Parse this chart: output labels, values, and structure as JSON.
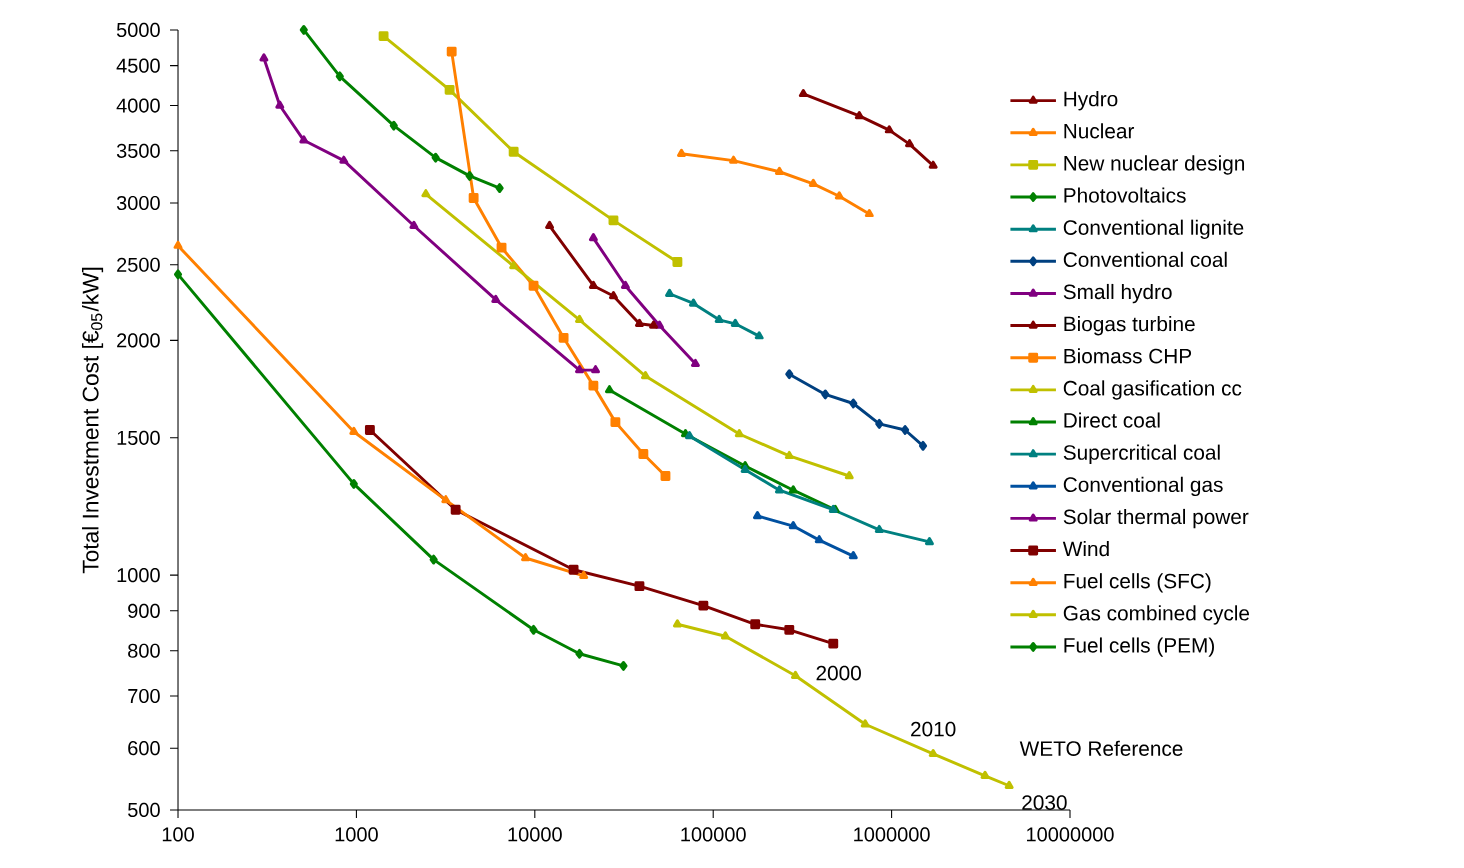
{
  "chart_data": {
    "type": "line",
    "ylabel": "Total Investment Cost [€$_{05}$/kW]",
    "log": "xy",
    "grid": false,
    "legend": "right",
    "line_style": "solid",
    "xlim": [
      100,
      10000000
    ],
    "xticks": [
      100,
      1000,
      10000,
      100000,
      1000000,
      10000000
    ],
    "ylim": [
      500,
      5000
    ],
    "yticks": [
      500,
      600,
      700,
      800,
      900,
      1000,
      1500,
      2000,
      2500,
      3000,
      3500,
      4000,
      4500,
      5000
    ],
    "series": [
      {
        "name": "Hydro",
        "color": "#800000",
        "marker": "triangle",
        "x": [
          320000,
          659000,
          970000,
          1260000,
          1710000
        ],
        "values": [
          4140,
          3880,
          3720,
          3570,
          3350
        ]
      },
      {
        "name": "Nuclear",
        "color": "#ff8000",
        "marker": "triangle",
        "x": [
          66400,
          130000,
          235000,
          364000,
          509000,
          750000
        ],
        "values": [
          3470,
          3400,
          3290,
          3175,
          3060,
          2905
        ]
      },
      {
        "name": "New nuclear design",
        "color": "#c0c000",
        "marker": "square",
        "x": [
          1420,
          3330,
          7610,
          27600,
          63000
        ],
        "values": [
          4910,
          4190,
          3490,
          2850,
          2520
        ]
      },
      {
        "name": "Photovoltaics",
        "color": "#008000",
        "marker": "diamond",
        "x": [
          507,
          807,
          1620,
          2780,
          4310,
          6350
        ],
        "values": [
          5000,
          4360,
          3770,
          3430,
          3250,
          3135
        ]
      },
      {
        "name": "Conventional lignite",
        "color": "#008080",
        "marker": "triangle",
        "x": [
          56900,
          77500,
          108000,
          133000,
          181000
        ],
        "values": [
          2295,
          2230,
          2125,
          2100,
          2025
        ]
      },
      {
        "name": "Conventional coal",
        "color": "#004080",
        "marker": "diamond",
        "x": [
          267000,
          425000,
          610000,
          853000,
          1190000,
          1500000
        ],
        "values": [
          1810,
          1705,
          1660,
          1563,
          1535,
          1465
        ]
      },
      {
        "name": "Small hydro",
        "color": "#800080",
        "marker": "triangle",
        "x": [
          21300,
          32200,
          50000,
          79500
        ],
        "values": [
          2705,
          2350,
          2090,
          1866
        ]
      },
      {
        "name": "Biogas turbine",
        "color": "#800000",
        "marker": "triangle",
        "x": [
          12100,
          21300,
          27600,
          38600,
          46300
        ],
        "values": [
          2805,
          2350,
          2280,
          2100,
          2090
        ]
      },
      {
        "name": "Biomass CHP",
        "color": "#ff8000",
        "marker": "square",
        "x": [
          3420,
          4540,
          6510,
          9840,
          14500,
          21300,
          28300,
          40600,
          54000
        ],
        "values": [
          4690,
          3045,
          2630,
          2350,
          2015,
          1750,
          1571,
          1430,
          1340
        ]
      },
      {
        "name": "Coal gasification cc",
        "color": "#c0c000",
        "marker": "triangle",
        "x": [
          2450,
          7610,
          17800,
          41700,
          140000,
          267000,
          579000
        ],
        "values": [
          3080,
          2490,
          2125,
          1800,
          1517,
          1422,
          1340
        ]
      },
      {
        "name": "Direct coal",
        "color": "#008000",
        "marker": "triangle",
        "x": [
          26200,
          69900,
          151000,
          281000,
          483000
        ],
        "values": [
          1727,
          1517,
          1380,
          1285,
          1213
        ]
      },
      {
        "name": "Supercritical coal",
        "color": "#008080",
        "marker": "triangle",
        "x": [
          73600,
          151000,
          235000,
          471000,
          853000,
          1630000
        ],
        "values": [
          1508,
          1365,
          1285,
          1213,
          1143,
          1103
        ]
      },
      {
        "name": "Conventional gas",
        "color": "#0050a0",
        "marker": "triangle",
        "x": [
          177000,
          281000,
          393000,
          610000
        ],
        "values": [
          1191,
          1156,
          1109,
          1058
        ]
      },
      {
        "name": "Solar thermal power",
        "color": "#800080",
        "marker": "triangle",
        "x": [
          303,
          372,
          507,
          850,
          2100,
          6040,
          17800,
          21900
        ],
        "values": [
          4600,
          4000,
          3610,
          3400,
          2805,
          2255,
          1832,
          1832
        ]
      },
      {
        "name": "Wind",
        "color": "#800000",
        "marker": "square",
        "x": [
          1190,
          3600,
          16500,
          38600,
          88100,
          172000,
          267000,
          471000
        ],
        "values": [
          1535,
          1213,
          1016,
          968,
          914,
          865,
          851,
          817
        ]
      },
      {
        "name": "Fuel cells (SFC)",
        "color": "#ff8000",
        "marker": "triangle",
        "x": [
          100,
          967,
          3170,
          8870,
          18800
        ],
        "values": [
          2645,
          1527,
          1248,
          1052,
          998
        ]
      },
      {
        "name": "Gas combined cycle",
        "color": "#c0c000",
        "marker": "triangle",
        "x": [
          63000,
          117000,
          289000,
          711000,
          1710000,
          3340000,
          4560000
        ],
        "values": [
          865,
          835,
          743,
          644,
          590,
          553,
          537
        ]
      },
      {
        "name": "Fuel cells (PEM)",
        "color": "#008000",
        "marker": "diamond",
        "x": [
          100,
          967,
          2710,
          9840,
          17800,
          31400
        ],
        "values": [
          2430,
          1309,
          1047,
          851,
          793,
          765
        ]
      }
    ],
    "annotations": [
      {
        "text": "2000",
        "x": 289000,
        "y": 743
      },
      {
        "text": "2010",
        "x": 1710000,
        "y": 590
      },
      {
        "text": "2030",
        "x": 4560000,
        "y": 537
      },
      "WETO Reference"
    ]
  }
}
